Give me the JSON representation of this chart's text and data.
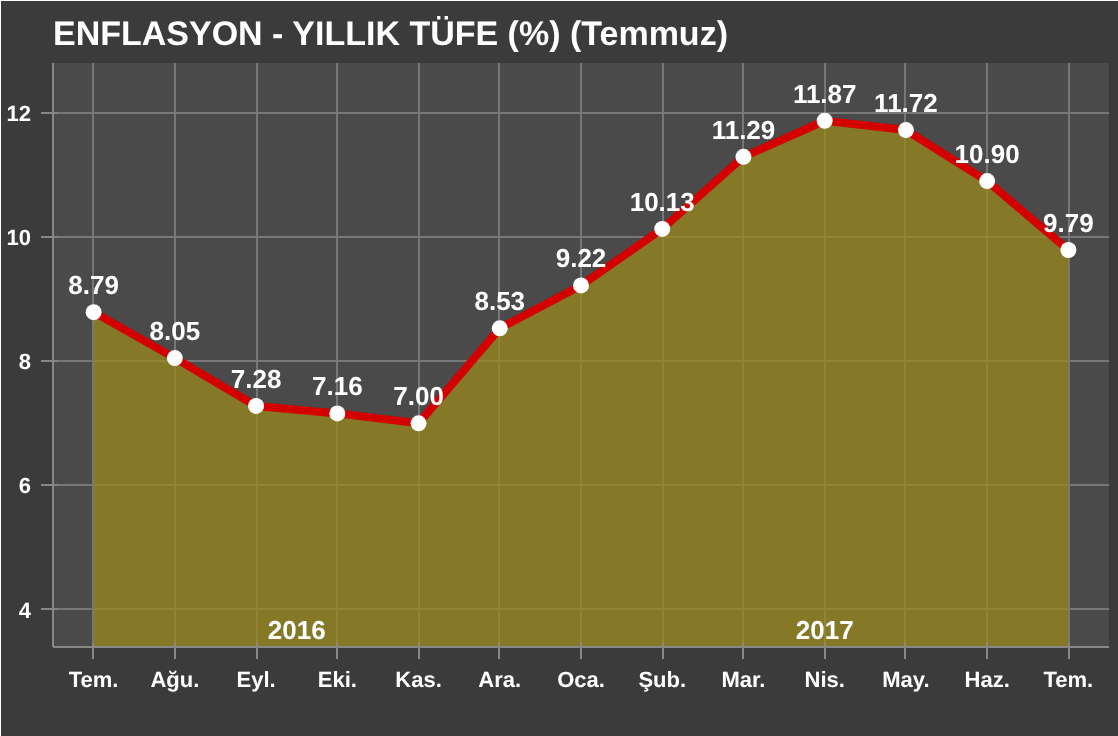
{
  "chart_data": {
    "type": "area",
    "title": "ENFLASYON - YILLIK TÜFE (%) (Temmuz)",
    "categories": [
      "Tem.",
      "Ağu.",
      "Eyl.",
      "Eki.",
      "Kas.",
      "Ara.",
      "Oca.",
      "Şub.",
      "Mar.",
      "Nis.",
      "May.",
      "Haz.",
      "Tem."
    ],
    "series": [
      {
        "color": "#d40000",
        "values": [
          8.79,
          8.05,
          7.28,
          7.16,
          7.0,
          8.53,
          9.22,
          10.13,
          11.29,
          11.87,
          11.72,
          10.9,
          9.79
        ]
      }
    ],
    "value_labels": [
      "8.79",
      "8.05",
      "7.28",
      "7.16",
      "7.00",
      "8.53",
      "9.22",
      "10.13",
      "11.29",
      "11.87",
      "11.72",
      "10.90",
      "9.79"
    ],
    "ylim": [
      3.4,
      12.8
    ],
    "yticks": [
      4,
      6,
      8,
      10,
      12
    ],
    "grid": true,
    "marker": "circle",
    "line_style": "solid",
    "annotations": [
      "2016",
      "2017"
    ]
  }
}
